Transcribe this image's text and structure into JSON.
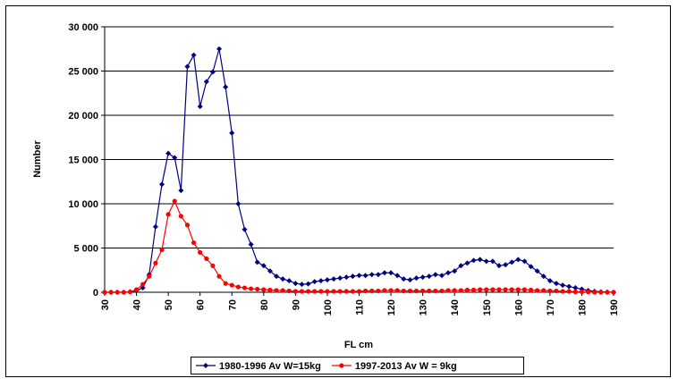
{
  "chart_data": {
    "type": "line",
    "x_label": "FL cm",
    "y_label": "Number",
    "x": [
      30,
      32,
      34,
      36,
      38,
      40,
      42,
      44,
      46,
      48,
      50,
      52,
      54,
      56,
      58,
      60,
      62,
      64,
      66,
      68,
      70,
      72,
      74,
      76,
      78,
      80,
      82,
      84,
      86,
      88,
      90,
      92,
      94,
      96,
      98,
      100,
      102,
      104,
      106,
      108,
      110,
      112,
      114,
      116,
      118,
      120,
      122,
      124,
      126,
      128,
      130,
      132,
      134,
      136,
      138,
      140,
      142,
      144,
      146,
      148,
      150,
      152,
      154,
      156,
      158,
      160,
      162,
      164,
      166,
      168,
      170,
      172,
      174,
      176,
      178,
      180,
      182,
      184,
      186,
      188,
      190
    ],
    "series": [
      {
        "name": "1980-1996 Av W=15kg",
        "color": "#000080",
        "marker": "diamond",
        "values": [
          0,
          0,
          0,
          0,
          50,
          200,
          500,
          2000,
          7400,
          12200,
          15700,
          15200,
          11500,
          25500,
          26800,
          21000,
          23800,
          24900,
          27500,
          23200,
          18000,
          10000,
          7100,
          5400,
          3400,
          3000,
          2400,
          1800,
          1500,
          1300,
          1000,
          900,
          950,
          1200,
          1300,
          1400,
          1500,
          1600,
          1700,
          1800,
          1900,
          1900,
          2000,
          2000,
          2200,
          2200,
          1900,
          1500,
          1400,
          1600,
          1700,
          1800,
          2000,
          1900,
          2200,
          2400,
          3000,
          3300,
          3600,
          3700,
          3500,
          3500,
          3000,
          3100,
          3400,
          3700,
          3500,
          2900,
          2400,
          1800,
          1300,
          1000,
          800,
          650,
          500,
          350,
          200,
          100,
          50,
          20,
          0
        ]
      },
      {
        "name": "1997-2013 Av W = 9kg",
        "color": "#ff0000",
        "marker": "circle",
        "values": [
          0,
          0,
          0,
          0,
          50,
          300,
          900,
          1800,
          3300,
          4800,
          8800,
          10300,
          8600,
          7600,
          5600,
          4500,
          3800,
          3000,
          1800,
          1000,
          800,
          600,
          500,
          400,
          350,
          300,
          250,
          200,
          200,
          150,
          100,
          100,
          100,
          100,
          100,
          100,
          100,
          100,
          100,
          100,
          100,
          150,
          150,
          150,
          200,
          200,
          200,
          150,
          150,
          150,
          150,
          150,
          150,
          150,
          200,
          200,
          200,
          250,
          250,
          300,
          300,
          300,
          300,
          300,
          300,
          300,
          300,
          250,
          200,
          200,
          150,
          150,
          100,
          100,
          50,
          50,
          50,
          0,
          0,
          0,
          0
        ]
      }
    ],
    "xlim": [
      30,
      190
    ],
    "xticks": [
      30,
      40,
      50,
      60,
      70,
      80,
      90,
      100,
      110,
      120,
      130,
      140,
      150,
      160,
      170,
      180,
      190
    ],
    "ylim": [
      0,
      30000
    ],
    "yticks": [
      0,
      {
        "value": 5000,
        "label": "5 000"
      },
      {
        "value": 10000,
        "label": "10 000"
      },
      {
        "value": 15000,
        "label": "15 000"
      },
      {
        "value": 20000,
        "label": "20 000"
      },
      {
        "value": 25000,
        "label": "25 000"
      },
      {
        "value": 30000,
        "label": "30 000"
      }
    ],
    "grid": true,
    "legend": "bottom"
  }
}
